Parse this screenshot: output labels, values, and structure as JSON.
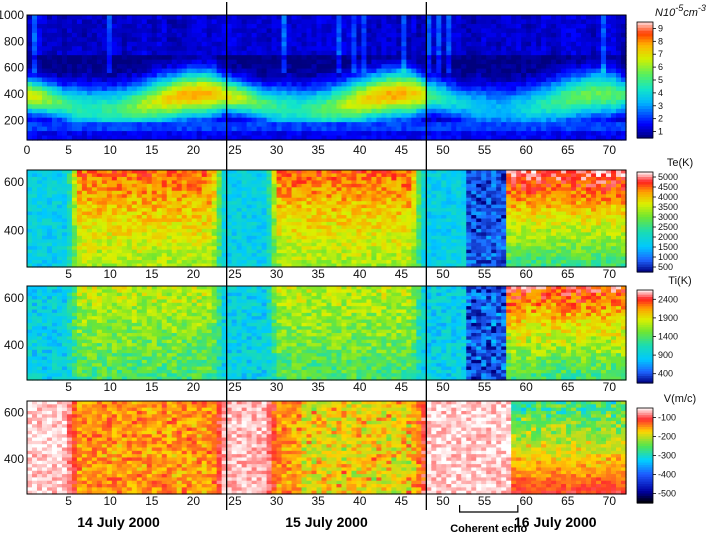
{
  "chart_data": [
    {
      "type": "heatmap",
      "quantity": "density",
      "colorbar_title_main": "N",
      "colorbar_title_sup": "10",
      "colorbar_title_exp": "-5",
      "colorbar_title_unit": "cm",
      "colorbar_title_unit_exp": "-3",
      "colorbar_ticks": [
        "9",
        "8",
        "7",
        "6",
        "5",
        "4",
        "3",
        "2",
        "1"
      ],
      "colormap": "jet",
      "xlim": [
        0,
        72
      ],
      "x_ticks": [
        "0",
        "5",
        "10",
        "15",
        "20",
        "25",
        "30",
        "35",
        "40",
        "45",
        "50",
        "55",
        "60",
        "65",
        "70"
      ],
      "ylim": [
        50,
        1000
      ],
      "y_ticks": [
        "1000",
        "800",
        "600",
        "400",
        "200"
      ],
      "peak_altitude_km": 350
    },
    {
      "type": "heatmap",
      "quantity": "electron_temperature",
      "colorbar_title": "Te(K)",
      "colorbar_ticks": [
        "5000",
        "4500",
        "4000",
        "3500",
        "3000",
        "2500",
        "2000",
        "1500",
        "1000",
        "500"
      ],
      "colormap": "jet-white",
      "xlim": [
        0,
        72
      ],
      "x_ticks": [
        "5",
        "10",
        "15",
        "20",
        "25",
        "30",
        "35",
        "40",
        "45",
        "50",
        "55",
        "60",
        "65",
        "70"
      ],
      "ylim": [
        250,
        650
      ],
      "y_ticks": [
        "600",
        "400"
      ]
    },
    {
      "type": "heatmap",
      "quantity": "ion_temperature",
      "colorbar_title": "Ti(K)",
      "colorbar_ticks": [
        "2400",
        "1900",
        "1400",
        "900",
        "400"
      ],
      "colormap": "jet-white",
      "xlim": [
        0,
        72
      ],
      "x_ticks": [
        "5",
        "10",
        "15",
        "20",
        "25",
        "30",
        "35",
        "40",
        "45",
        "50",
        "55",
        "60",
        "65",
        "70"
      ],
      "ylim": [
        250,
        650
      ],
      "y_ticks": [
        "600",
        "400"
      ]
    },
    {
      "type": "heatmap",
      "quantity": "ion_velocity",
      "colorbar_title": "V(m/c)",
      "colorbar_ticks": [
        "-100",
        "-200",
        "-300",
        "-400",
        "-500"
      ],
      "colormap": "velocity",
      "xlim": [
        0,
        72
      ],
      "x_ticks": [
        "5",
        "10",
        "15",
        "20",
        "25",
        "30",
        "35",
        "40",
        "45",
        "50",
        "55",
        "60",
        "65",
        "70"
      ],
      "ylim": [
        250,
        650
      ],
      "y_ticks": [
        "600",
        "400"
      ]
    }
  ],
  "day_boundaries": [
    24,
    48
  ],
  "dates": [
    "14 July 2000",
    "15 July 2000",
    "16 July 2000"
  ],
  "coherent_echo": {
    "label": "Coherent echo",
    "range": [
      52,
      59
    ]
  }
}
